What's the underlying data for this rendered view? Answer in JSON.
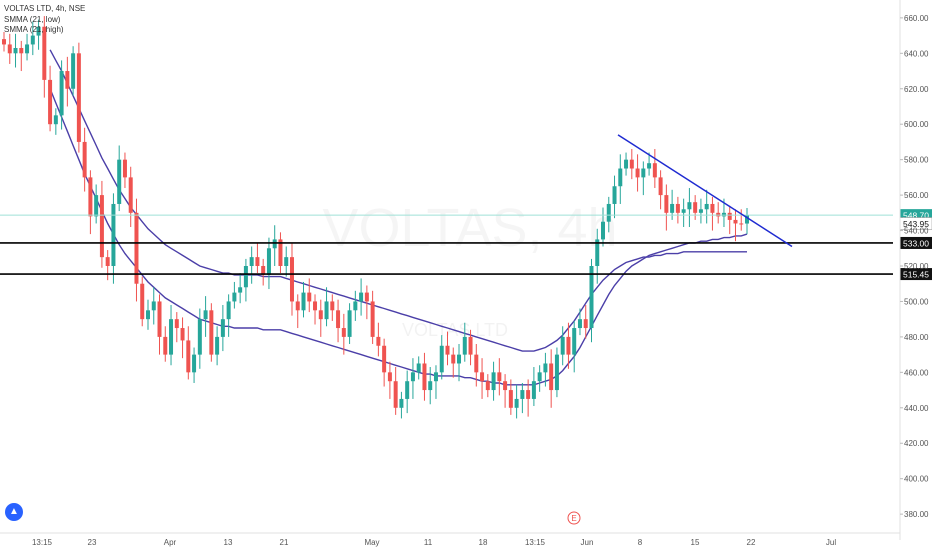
{
  "legend": {
    "symbol": "VOLTAS LTD, 4h, NSE",
    "smma_low": "SMMA (21, low)",
    "smma_high": "SMMA (21, high)"
  },
  "watermark": {
    "ticker": "VOLTAS, 4h",
    "name": "VOLTAS LTD"
  },
  "event_marker": "E",
  "colors": {
    "up": "#26a69a",
    "down": "#ef5350",
    "smma": "#4b3fa8",
    "trendline": "#1f2bd1",
    "price_line": "#9fe0d6",
    "axis_text": "#555555",
    "current_price_bg": "#26a69a"
  },
  "chart_data": {
    "type": "candlestick",
    "title": "VOLTAS LTD, 4h, NSE",
    "ylim": [
      375,
      665
    ],
    "y_ticks": [
      380,
      400,
      420,
      440,
      460,
      480,
      500,
      520,
      540,
      560,
      580,
      600,
      620,
      640,
      660
    ],
    "x_ticks": [
      "13:15",
      "23",
      "Apr",
      "13",
      "21",
      "May",
      "11",
      "18",
      "13:15",
      "Jun",
      "8",
      "15",
      "22",
      "Jul"
    ],
    "closes": [
      645,
      640,
      643,
      640,
      645,
      650,
      655,
      625,
      600,
      605,
      630,
      620,
      640,
      590,
      570,
      548,
      560,
      525,
      520,
      555,
      580,
      570,
      550,
      510,
      490,
      495,
      500,
      480,
      470,
      490,
      485,
      478,
      460,
      470,
      490,
      495,
      470,
      480,
      490,
      500,
      505,
      508,
      520,
      525,
      520,
      515,
      530,
      535,
      520,
      525,
      500,
      495,
      505,
      500,
      495,
      490,
      500,
      495,
      485,
      480,
      495,
      500,
      505,
      500,
      480,
      475,
      460,
      455,
      440,
      445,
      455,
      460,
      465,
      450,
      455,
      460,
      475,
      470,
      465,
      470,
      480,
      470,
      460,
      455,
      450,
      460,
      455,
      450,
      440,
      445,
      450,
      445,
      455,
      460,
      465,
      450,
      470,
      480,
      470,
      485,
      490,
      485,
      520,
      535,
      545,
      555,
      565,
      575,
      580,
      575,
      570,
      575,
      578,
      570,
      560,
      550,
      555,
      550,
      552,
      556,
      550,
      552,
      555,
      550,
      548,
      550,
      546,
      544,
      543.95,
      548.7
    ],
    "candles_note_removed": "",
    "series": [
      {
        "name": "SMMA (21, low)",
        "values": [
          null,
          null,
          null,
          null,
          null,
          null,
          null,
          null,
          620,
          612,
          604,
          596,
          588,
          580,
          572,
          565,
          558,
          551,
          544,
          538,
          532,
          527,
          523,
          519,
          515,
          511,
          508,
          505,
          502,
          500,
          498,
          496,
          494,
          492,
          490,
          489,
          488,
          487,
          486,
          486,
          485,
          485,
          485,
          485,
          485,
          484,
          484,
          484,
          484,
          483,
          482,
          481,
          480,
          479,
          478,
          477,
          476,
          475,
          474,
          473,
          472,
          471,
          470,
          469,
          468,
          467,
          466,
          465,
          464,
          463,
          462,
          461,
          460,
          459,
          459,
          458,
          458,
          458,
          458,
          458,
          457,
          457,
          456,
          455,
          455,
          454,
          454,
          453,
          453,
          453,
          453,
          453,
          453,
          454,
          455,
          456,
          458,
          461,
          465,
          469,
          474,
          480,
          486,
          492,
          498,
          504,
          509,
          513,
          517,
          520,
          522,
          524,
          526,
          527,
          528,
          529,
          530,
          531,
          532,
          533,
          533,
          534,
          534,
          535,
          535,
          536,
          536,
          537,
          537,
          538
        ]
      },
      {
        "name": "SMMA (21, high)",
        "values": [
          null,
          null,
          null,
          null,
          null,
          null,
          null,
          null,
          642,
          636,
          630,
          623,
          616,
          609,
          602,
          595,
          588,
          581,
          575,
          569,
          563,
          558,
          553,
          549,
          545,
          541,
          538,
          535,
          532,
          530,
          528,
          526,
          524,
          522,
          520,
          519,
          518,
          517,
          516,
          516,
          515,
          515,
          515,
          515,
          515,
          514,
          514,
          514,
          514,
          513,
          512,
          511,
          510,
          509,
          508,
          507,
          506,
          505,
          504,
          503,
          502,
          501,
          500,
          499,
          498,
          497,
          496,
          495,
          494,
          493,
          492,
          491,
          490,
          489,
          488,
          487,
          486,
          485,
          484,
          483,
          482,
          481,
          480,
          479,
          478,
          477,
          476,
          475,
          474,
          473,
          472,
          472,
          472,
          473,
          474,
          476,
          478,
          481,
          485,
          489,
          494,
          499,
          504,
          508,
          512,
          515,
          518,
          520,
          522,
          523,
          524,
          525,
          525,
          526,
          526,
          527,
          527,
          527,
          528,
          528,
          528,
          528,
          528,
          528,
          528,
          528,
          528,
          528,
          528,
          528
        ]
      }
    ],
    "levels": [
      548.7,
      543.95,
      533.0,
      515.45
    ],
    "trendline": {
      "from": [
        584,
        594
      ],
      "to": [
        594,
        531
      ],
      "note": ""
    }
  },
  "price_labels": [
    "548.70",
    "543.95",
    "533.00",
    "515.45"
  ]
}
